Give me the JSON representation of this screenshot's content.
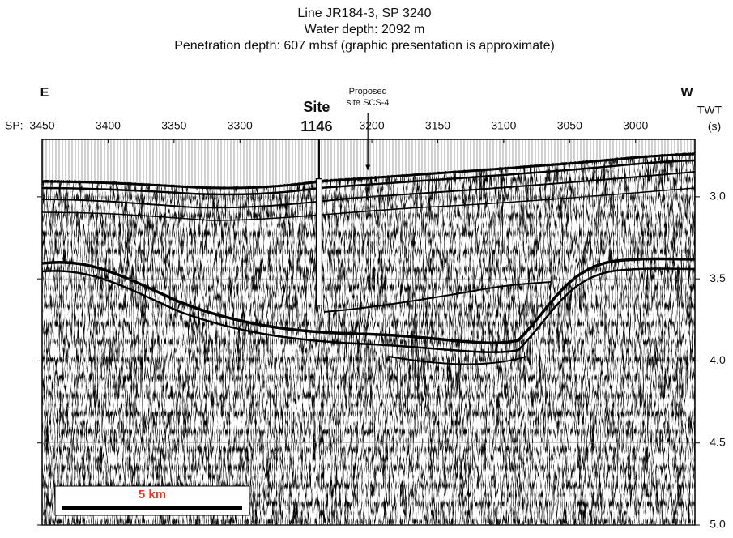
{
  "chart_data": {
    "type": "seismic-profile",
    "title": [
      "Line JR184-3, SP 3240",
      "Water depth: 2092 m",
      "Penetration depth: 607 mbsf (graphic presentation is approximate)"
    ],
    "direction_left": "E",
    "direction_right": "W",
    "x_label": "SP:",
    "y_label": [
      "TWT",
      "(s)"
    ],
    "xlim": [
      3450,
      2955
    ],
    "xticks": [
      3450,
      3400,
      3350,
      3300,
      3200,
      3150,
      3100,
      3050,
      3000
    ],
    "ylim": [
      2.65,
      5.0
    ],
    "yticks": [
      {
        "value": 3,
        "label": "3.0"
      },
      3.5,
      {
        "value": 4,
        "label": "4.0"
      },
      4.5,
      {
        "value": 5,
        "label": "5.0"
      }
    ],
    "grid": true,
    "site": {
      "label": [
        "Site",
        "1146"
      ],
      "sp": 3240,
      "top": 2.89,
      "bottom": 3.66
    },
    "proposed_site": {
      "label": [
        "Proposed",
        "site SCS-4"
      ],
      "sp": 3203,
      "twt": 2.84
    },
    "scale_bar": {
      "label": "5 km",
      "color": "#e8381c"
    }
  }
}
